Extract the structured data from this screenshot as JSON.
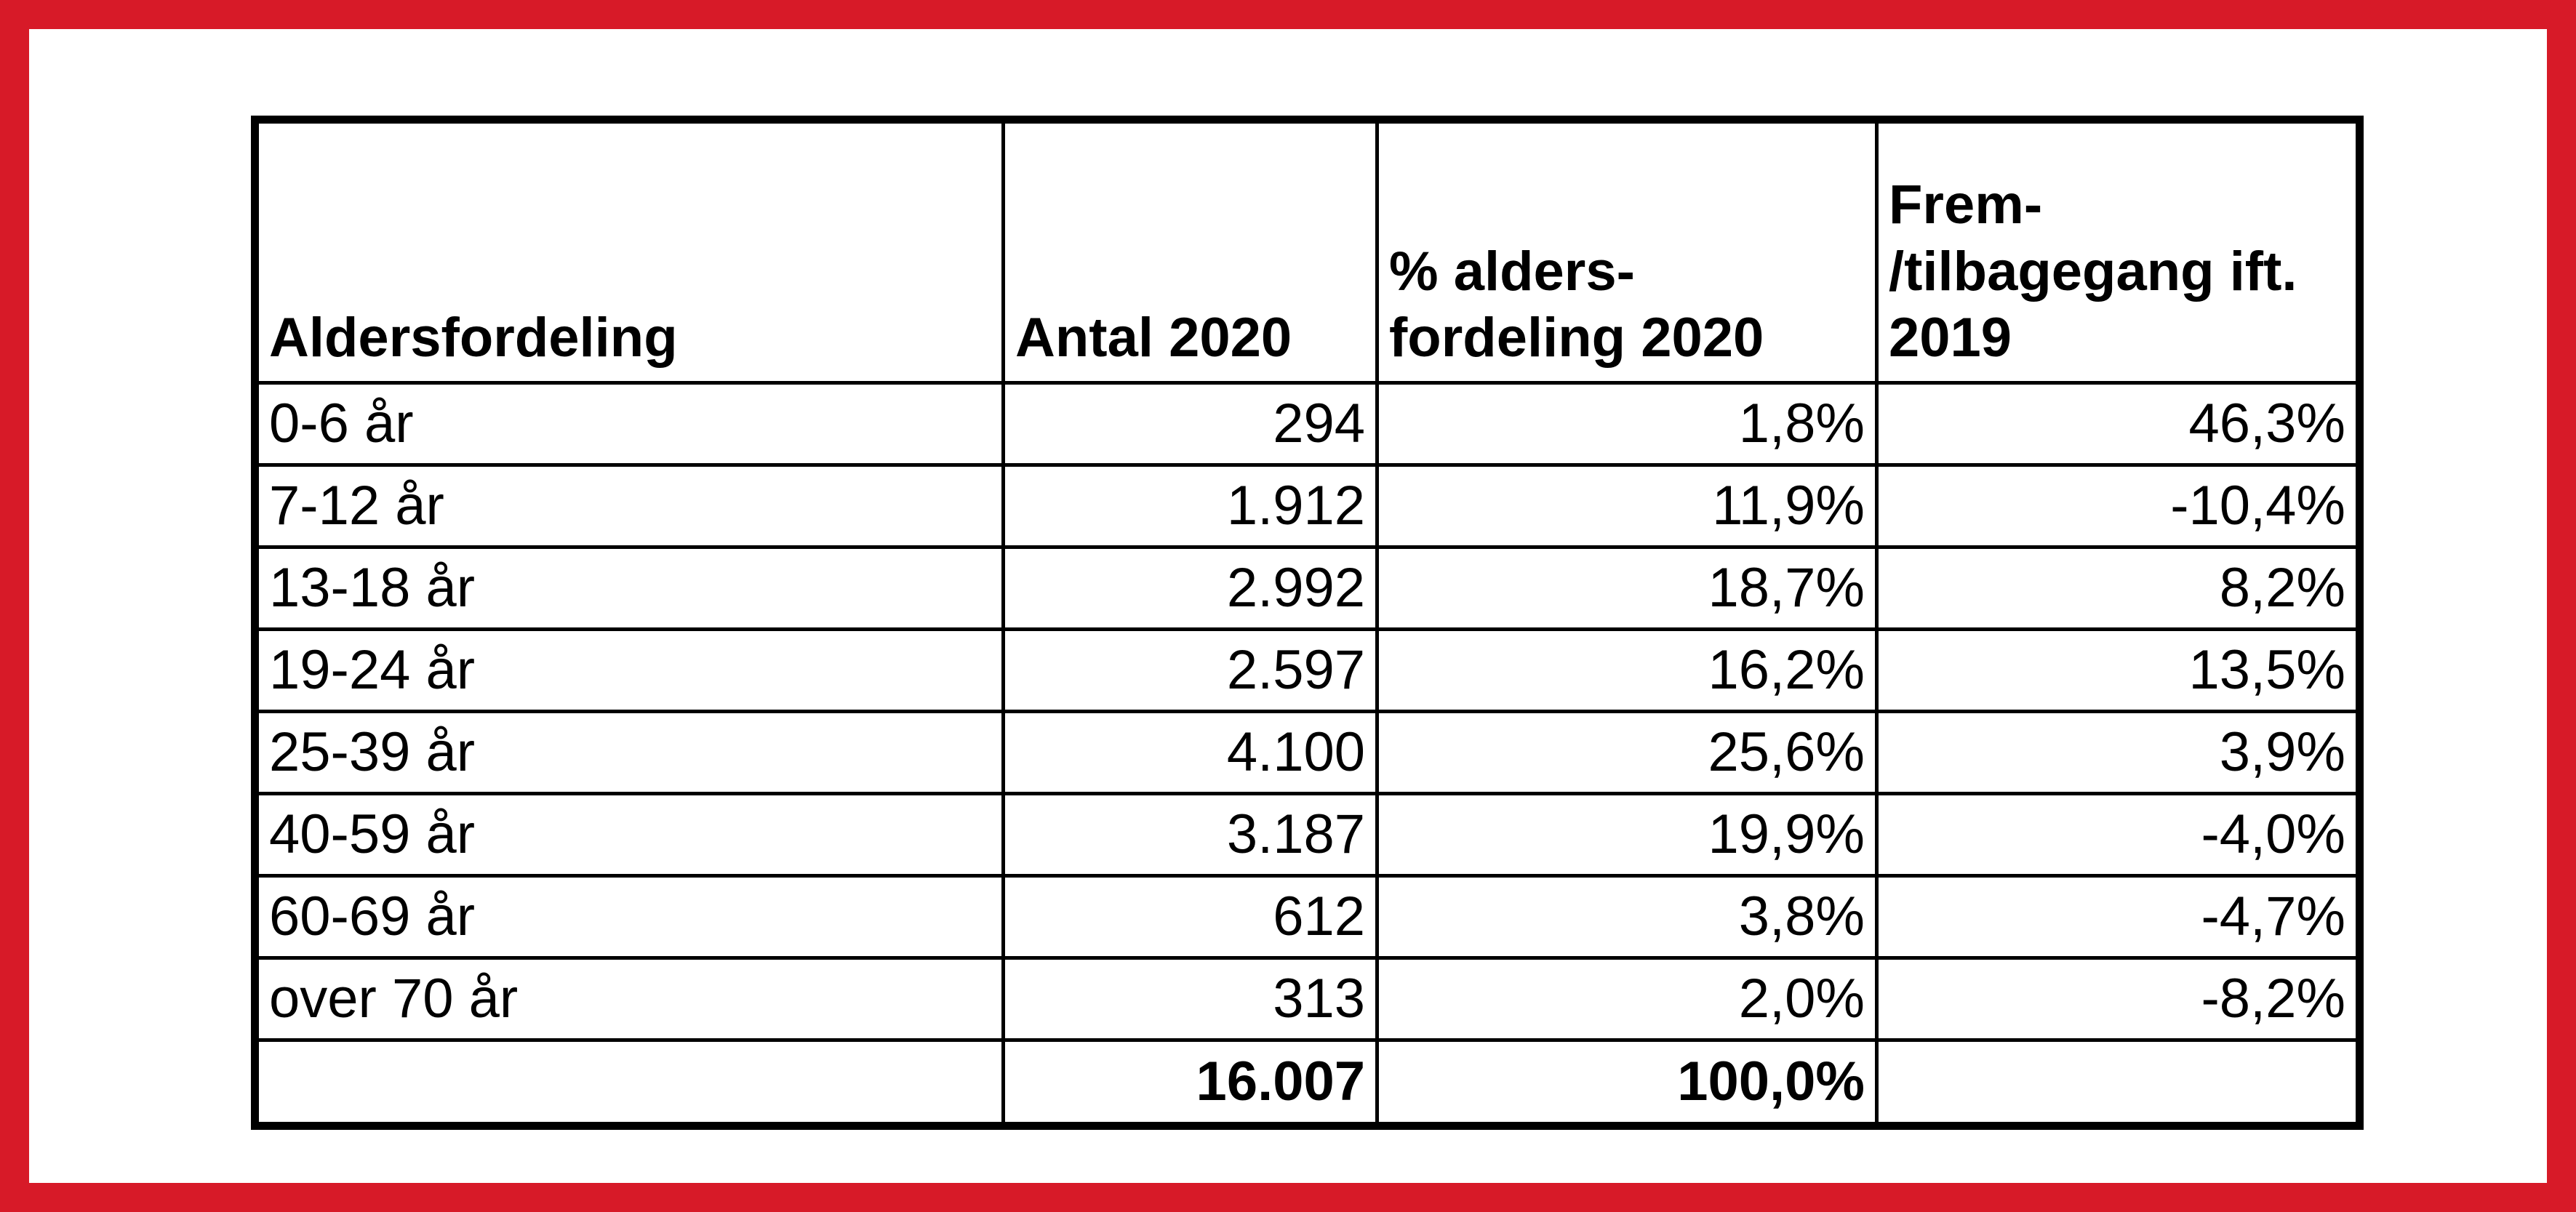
{
  "colors": {
    "frame": "#d71a28",
    "background": "#ffffff",
    "grid": "#000000"
  },
  "table": {
    "headers": [
      [
        "Aldersfordeling"
      ],
      [
        "Antal 2020"
      ],
      [
        "% alders-",
        "fordeling 2020"
      ],
      [
        "Frem-",
        "/tilbagegang ift.",
        "2019"
      ]
    ],
    "rows": [
      {
        "age": "0-6 år",
        "count": "294",
        "share": "1,8%",
        "change": "46,3%"
      },
      {
        "age": "7-12 år",
        "count": "1.912",
        "share": "11,9%",
        "change": "-10,4%"
      },
      {
        "age": "13-18 år",
        "count": "2.992",
        "share": "18,7%",
        "change": "8,2%"
      },
      {
        "age": "19-24 år",
        "count": "2.597",
        "share": "16,2%",
        "change": "13,5%"
      },
      {
        "age": "25-39 år",
        "count": "4.100",
        "share": "25,6%",
        "change": "3,9%"
      },
      {
        "age": "40-59 år",
        "count": "3.187",
        "share": "19,9%",
        "change": "-4,0%"
      },
      {
        "age": "60-69 år",
        "count": "612",
        "share": "3,8%",
        "change": "-4,7%"
      },
      {
        "age": "over 70 år",
        "count": "313",
        "share": "2,0%",
        "change": "-8,2%"
      }
    ],
    "total": {
      "age": "",
      "count": "16.007",
      "share": "100,0%",
      "change": ""
    }
  }
}
